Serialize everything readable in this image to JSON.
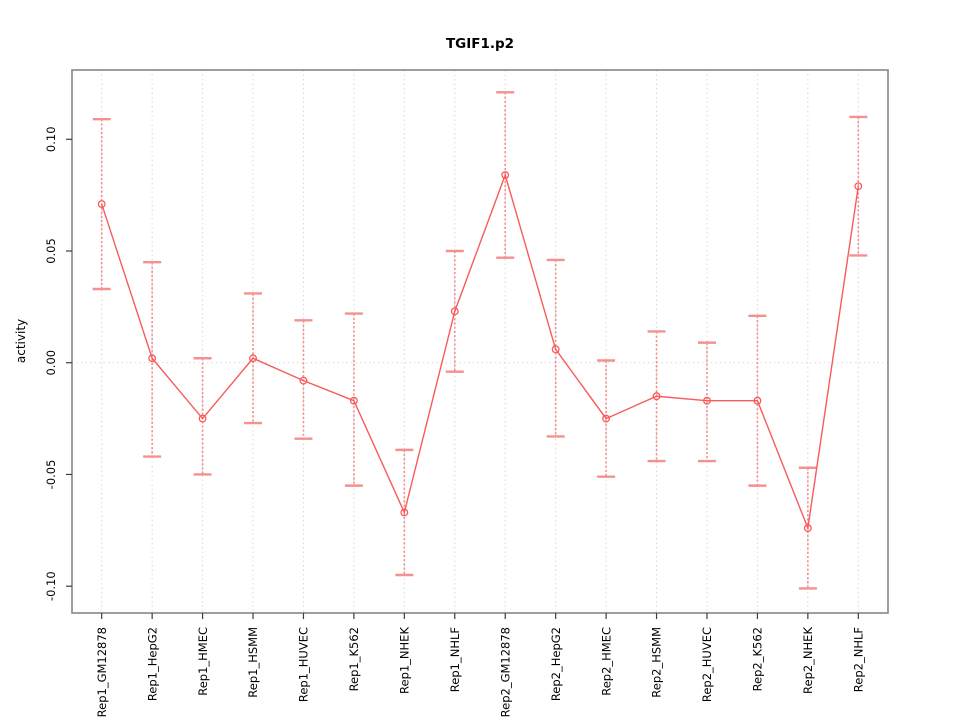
{
  "title": "TGIF1.p2",
  "chart_data": {
    "type": "line",
    "title": "TGIF1.p2",
    "xlabel": "",
    "ylabel": "activity",
    "legend": "none",
    "grid": "dotted vertical gridline at each category plus dotted horizontal line at y=0",
    "marker": "open-circle",
    "error_bars": true,
    "categories": [
      "Rep1_GM12878",
      "Rep1_HepG2",
      "Rep1_HMEC",
      "Rep1_HSMM",
      "Rep1_HUVEC",
      "Rep1_K562",
      "Rep1_NHEK",
      "Rep1_NHLF",
      "Rep2_GM12878",
      "Rep2_HepG2",
      "Rep2_HMEC",
      "Rep2_HSMM",
      "Rep2_HUVEC",
      "Rep2_K562",
      "Rep2_NHEK",
      "Rep2_NHLF"
    ],
    "series": [
      {
        "name": "activity",
        "values": [
          0.071,
          0.002,
          -0.025,
          0.002,
          -0.008,
          -0.017,
          -0.067,
          0.023,
          0.084,
          0.006,
          -0.025,
          -0.015,
          -0.017,
          -0.017,
          -0.074,
          0.079
        ],
        "error_high": [
          0.109,
          0.045,
          0.002,
          0.031,
          0.019,
          0.022,
          -0.039,
          0.05,
          0.121,
          0.046,
          0.001,
          0.014,
          0.009,
          0.021,
          -0.047,
          0.11
        ],
        "error_low": [
          0.033,
          -0.042,
          -0.05,
          -0.027,
          -0.034,
          -0.055,
          -0.095,
          -0.004,
          0.047,
          -0.033,
          -0.051,
          -0.044,
          -0.044,
          -0.055,
          -0.101,
          0.048
        ]
      }
    ],
    "yticks": [
      -0.1,
      -0.05,
      0.0,
      0.05,
      0.1
    ],
    "ytick_labels": [
      "-0.10",
      "-0.05",
      "0.00",
      "0.05",
      "0.10"
    ],
    "ylim": [
      -0.112,
      0.131
    ],
    "colors": {
      "line": "#f85b5b",
      "marker": "#f85b5b",
      "error_bar": "#f59090",
      "grid": "#d9d9d9",
      "border": "#868686",
      "tick": "#3c3c3c",
      "text": "#000000",
      "background": "#ffffff"
    }
  }
}
